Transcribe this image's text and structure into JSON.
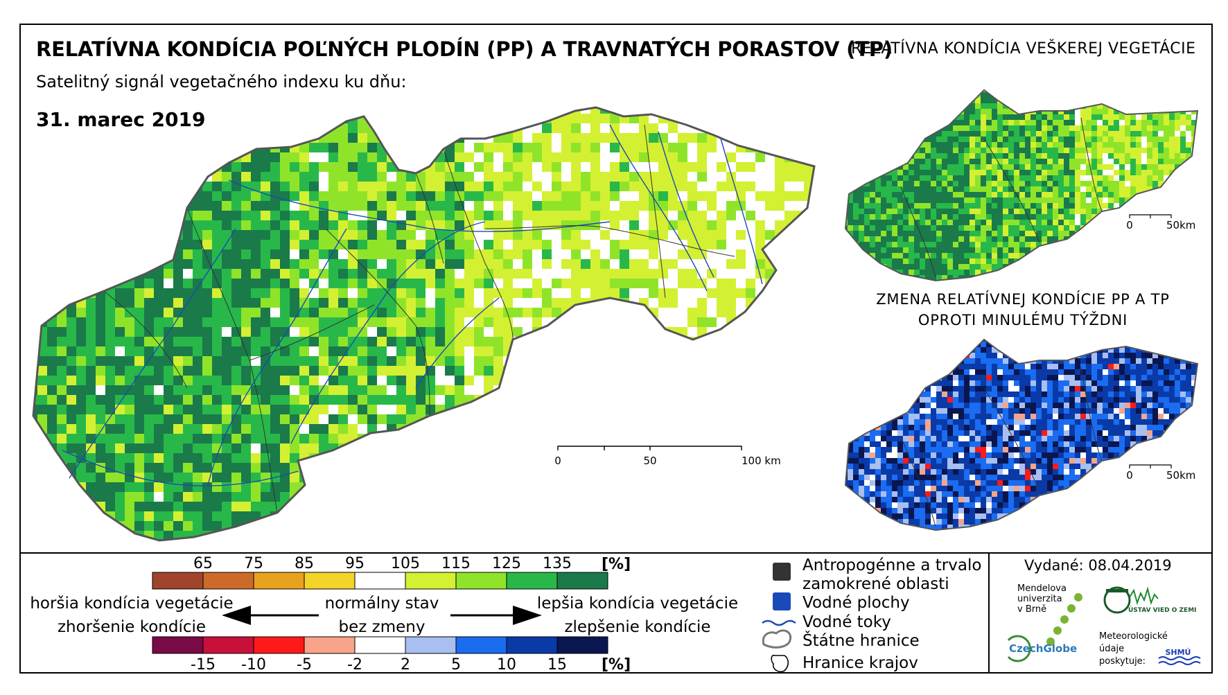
{
  "header": {
    "title": "RELATÍVNA KONDÍCIA POĽNÝCH PLODÍN (PP) A TRAVNATÝCH PORASTOV (TP)",
    "subtitle": "Satelitný signál vegetačného indexu ku dňu:",
    "date": "31. marec 2019"
  },
  "inset_top": {
    "title": "RELATÍVNA KONDÍCIA VEŠKEREJ VEGETÁCIE",
    "scale": [
      "0",
      "50km"
    ]
  },
  "inset_bottom": {
    "title_line1": "ZMENA RELATÍVNEJ KONDÍCIE PP A TP",
    "title_line2": "OPROTI MINULÉMU TÝŽDNI",
    "scale": [
      "0",
      "50km"
    ]
  },
  "main_scale": [
    "0",
    "50",
    "100 km"
  ],
  "legend_condition": {
    "ticks": [
      "65",
      "75",
      "85",
      "95",
      "105",
      "115",
      "125",
      "135"
    ],
    "unit": "[%]",
    "colors": [
      "#a0452b",
      "#cd6a2b",
      "#e8a21e",
      "#f5d42a",
      "#ffffff",
      "#d4f032",
      "#8fe42a",
      "#28b84a",
      "#1a7a4a"
    ],
    "left_label": "horšia kondícia vegetácie",
    "center_label": "normálny stav",
    "right_label": "lepšia kondícia vegetácie"
  },
  "legend_change": {
    "ticks": [
      "-15",
      "-10",
      "-5",
      "-2",
      "2",
      "5",
      "10",
      "15"
    ],
    "unit": "[%]",
    "colors": [
      "#7a0a45",
      "#c8103a",
      "#ff1a1a",
      "#f8a48a",
      "#ffffff",
      "#a8bff0",
      "#1a6cf0",
      "#0a3aa8",
      "#0a1650"
    ],
    "left_label": "zhoršenie kondície",
    "center_label": "bez zmeny",
    "right_label": "zlepšenie kondície"
  },
  "legend_features": [
    {
      "label": "Antropogénne a trvalo",
      "label2": "zamokrené oblasti",
      "icon": "dark-square-icon",
      "color": "#333333"
    },
    {
      "label": "Vodné plochy",
      "icon": "blue-square-icon",
      "color": "#1a4ab8"
    },
    {
      "label": "Vodné toky",
      "icon": "river-line-icon",
      "color": "#1a4ab8"
    },
    {
      "label": "Štátne hranice",
      "icon": "state-border-icon"
    },
    {
      "label": "Hranice krajov",
      "icon": "region-border-icon"
    }
  ],
  "footer": {
    "issued": "Vydané: 08.04.2019",
    "mendel": [
      "Mendelova",
      "univerzita",
      "v Brně"
    ],
    "czechglobe": "CzechGlobe",
    "ustav": "ÚSTAV VIED O ZEMI",
    "meteo": [
      "Meteorologické",
      "údaje",
      "poskytuje:"
    ],
    "shmu": "SHMÚ"
  }
}
